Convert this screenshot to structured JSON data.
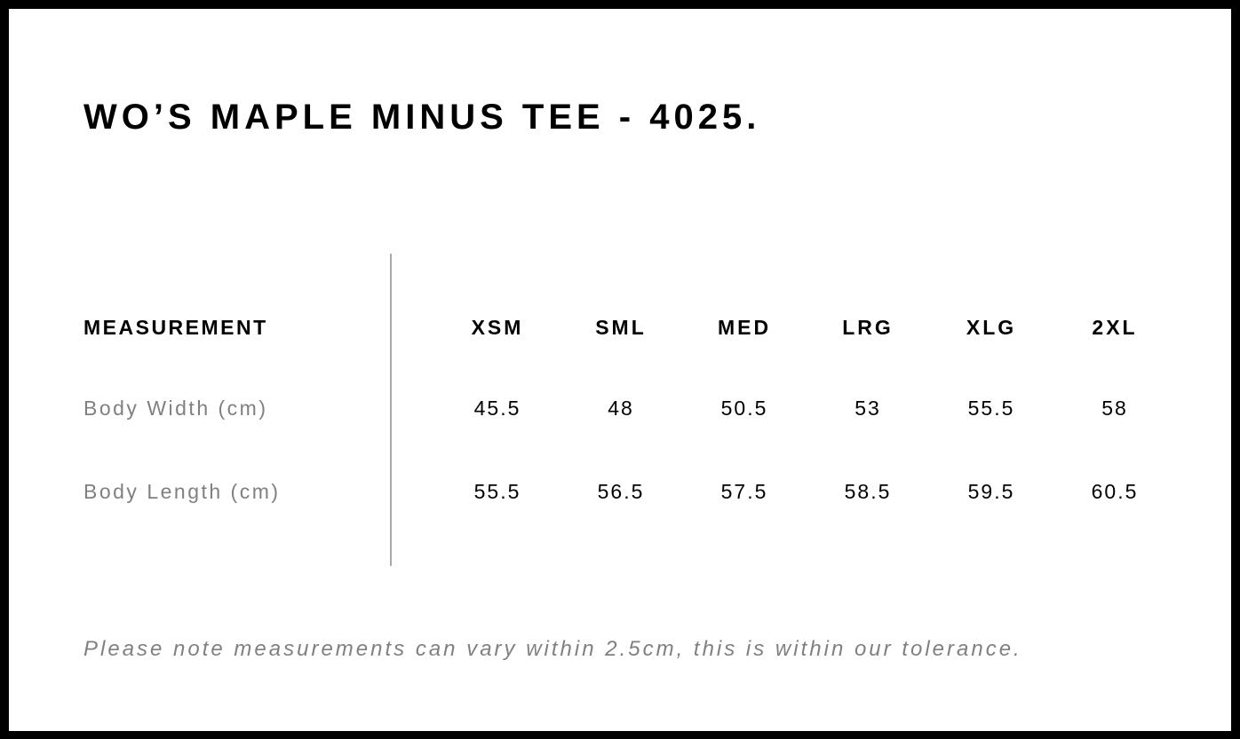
{
  "title": "WO’S MAPLE MINUS TEE - 4025.",
  "table": {
    "header": {
      "label": "MEASUREMENT",
      "sizes": [
        "XSM",
        "SML",
        "MED",
        "LRG",
        "XLG",
        "2XL"
      ]
    },
    "rows": [
      {
        "label": "Body Width (cm)",
        "values": [
          "45.5",
          "48",
          "50.5",
          "53",
          "55.5",
          "58"
        ]
      },
      {
        "label": "Body Length (cm)",
        "values": [
          "55.5",
          "56.5",
          "57.5",
          "58.5",
          "59.5",
          "60.5"
        ]
      }
    ]
  },
  "note": "Please note measurements can vary within 2.5cm, this is within our tolerance."
}
